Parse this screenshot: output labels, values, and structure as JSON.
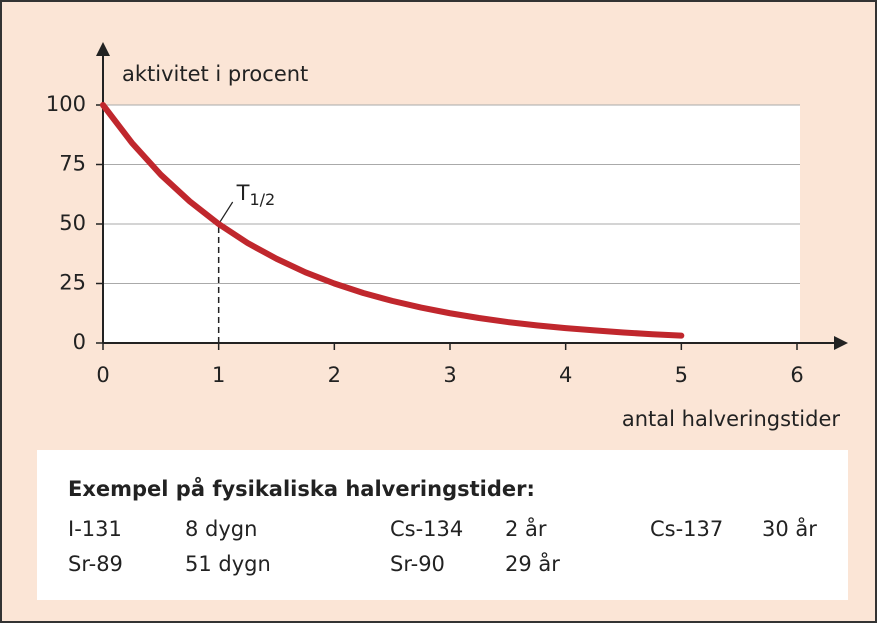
{
  "chart_data": {
    "type": "line",
    "y_label": "aktivitet i procent",
    "x_label": "antal halveringstider",
    "x": [
      0,
      0.25,
      0.5,
      0.75,
      1,
      1.25,
      1.5,
      1.75,
      2,
      2.25,
      2.5,
      2.75,
      3,
      3.25,
      3.5,
      3.75,
      4,
      4.25,
      4.5,
      4.75,
      5
    ],
    "series": [
      {
        "color": "#c0272d",
        "values": [
          100,
          84.1,
          70.7,
          59.5,
          50,
          42.0,
          35.4,
          29.7,
          25,
          21.0,
          17.7,
          14.9,
          12.5,
          10.5,
          8.8,
          7.4,
          6.25,
          5.3,
          4.4,
          3.7,
          3.1
        ]
      }
    ],
    "xlim": [
      0,
      6
    ],
    "xticks": [
      0,
      1,
      2,
      3,
      4,
      5,
      6
    ],
    "ylim": [
      0,
      100
    ],
    "yticks": [
      0,
      25,
      50,
      75,
      100
    ],
    "grid": true,
    "annotation": {
      "text": "T",
      "subscript": "1/2",
      "x": 1,
      "y": 50
    }
  },
  "table": {
    "title": "Exempel på fysikaliska halveringstider:",
    "rows": [
      [
        "I-131",
        "8 dygn",
        "Cs-134",
        "2 år",
        "Cs-137",
        "30 år"
      ],
      [
        "Sr-89",
        "51 dygn",
        "Sr-90",
        "29 år"
      ]
    ]
  }
}
